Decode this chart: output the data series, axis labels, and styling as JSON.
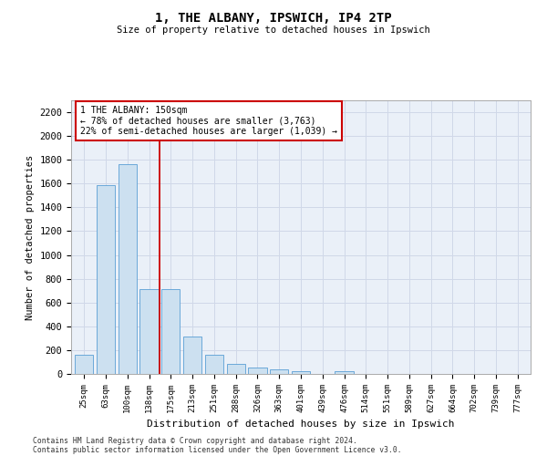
{
  "title1": "1, THE ALBANY, IPSWICH, IP4 2TP",
  "title2": "Size of property relative to detached houses in Ipswich",
  "xlabel": "Distribution of detached houses by size in Ipswich",
  "ylabel": "Number of detached properties",
  "categories": [
    "25sqm",
    "63sqm",
    "100sqm",
    "138sqm",
    "175sqm",
    "213sqm",
    "251sqm",
    "288sqm",
    "326sqm",
    "363sqm",
    "401sqm",
    "439sqm",
    "476sqm",
    "514sqm",
    "551sqm",
    "589sqm",
    "627sqm",
    "664sqm",
    "702sqm",
    "739sqm",
    "777sqm"
  ],
  "values": [
    160,
    1590,
    1760,
    710,
    710,
    315,
    160,
    85,
    55,
    35,
    25,
    0,
    20,
    0,
    0,
    0,
    0,
    0,
    0,
    0,
    0
  ],
  "bar_color": "#cce0f0",
  "bar_edge_color": "#5a9fd4",
  "red_line_x": 3.5,
  "annotation_text": "1 THE ALBANY: 150sqm\n← 78% of detached houses are smaller (3,763)\n22% of semi-detached houses are larger (1,039) →",
  "annotation_box_color": "#ffffff",
  "annotation_box_edge": "#cc0000",
  "ylim": [
    0,
    2300
  ],
  "yticks": [
    0,
    200,
    400,
    600,
    800,
    1000,
    1200,
    1400,
    1600,
    1800,
    2000,
    2200
  ],
  "red_line_color": "#cc0000",
  "grid_color": "#d0d8e8",
  "bg_color": "#eaf0f8",
  "footer1": "Contains HM Land Registry data © Crown copyright and database right 2024.",
  "footer2": "Contains public sector information licensed under the Open Government Licence v3.0."
}
